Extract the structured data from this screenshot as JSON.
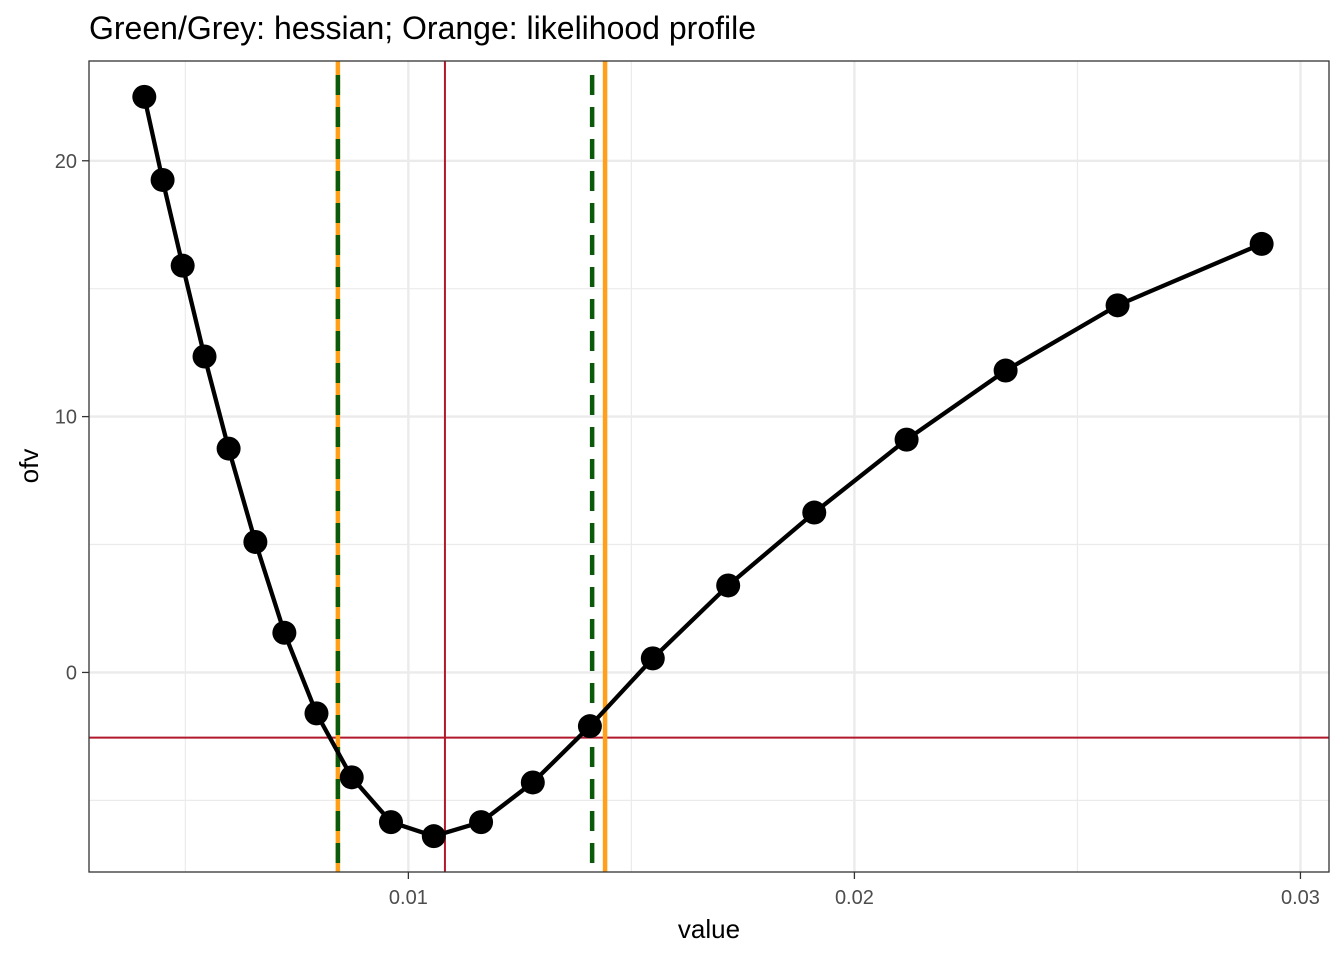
{
  "chart_data": {
    "type": "line",
    "title": "Green/Grey: hessian; Orange: likelihood profile",
    "xlabel": "value",
    "ylabel": "ofv",
    "xlim": [
      0.00284,
      0.03064
    ],
    "ylim": [
      -7.8,
      23.9
    ],
    "x_ticks": [
      0.01,
      0.02,
      0.03
    ],
    "x_tick_labels": [
      "0.01",
      "0.02",
      "0.03"
    ],
    "x_minor_ticks": [
      0.005,
      0.015,
      0.025
    ],
    "y_ticks": [
      0,
      10,
      20
    ],
    "y_tick_labels": [
      "0",
      "10",
      "20"
    ],
    "y_minor_ticks": [
      -5,
      5,
      15
    ],
    "grid": true,
    "series": [
      {
        "x": [
          0.00408,
          0.00449,
          0.00494,
          0.00543,
          0.00597,
          0.00657,
          0.00722,
          0.00794,
          0.00873,
          0.00961,
          0.01057,
          0.01163,
          0.01279,
          0.01407,
          0.01548,
          0.01717,
          0.0191,
          0.02117,
          0.02339,
          0.0259,
          0.02913
        ],
        "y": [
          22.5,
          19.25,
          15.9,
          12.35,
          8.75,
          5.1,
          1.55,
          -1.6,
          -4.1,
          -5.85,
          -6.4,
          -5.85,
          -4.3,
          -2.1,
          0.55,
          3.4,
          6.25,
          9.1,
          11.8,
          14.35,
          16.75
        ],
        "color": "#000000"
      }
    ],
    "reference_lines": {
      "estimate_x": 0.01082,
      "threshold_y": -2.55,
      "hessian_ci": [
        0.00842,
        0.01412
      ],
      "profile_ci": [
        0.00842,
        0.01441
      ]
    },
    "colors": {
      "estimate": "#b2182b",
      "hessian": "#0b5a0b",
      "profile": "#ff9f1a",
      "grid": "#ebebeb",
      "panel_border": "#333333"
    }
  }
}
